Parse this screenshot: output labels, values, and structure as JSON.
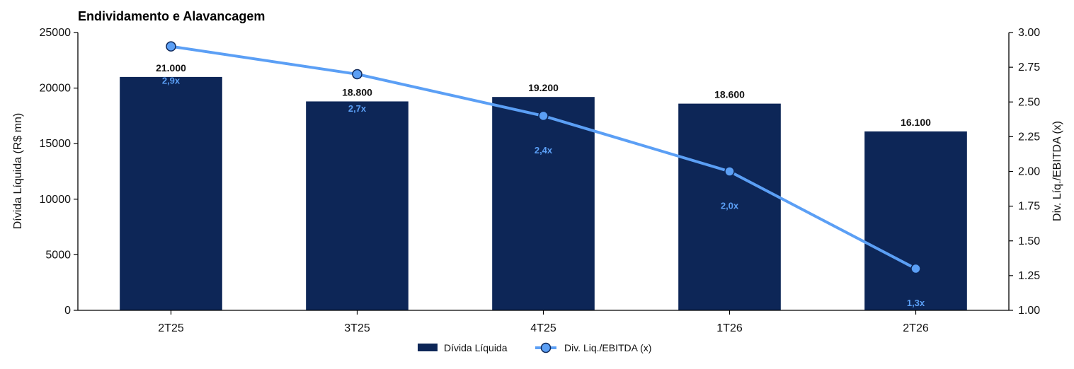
{
  "colors": {
    "bar": "#0d2657",
    "line": "#5b9ff5",
    "marker_edge": "#0d2657",
    "axis": "#000000"
  },
  "chart_data": {
    "type": "bar",
    "title": "Endividamento e Alavancagem",
    "categories": [
      "2T25",
      "3T25",
      "4T25",
      "1T26",
      "2T26"
    ],
    "series": [
      {
        "name": "Dívida Líquida",
        "type": "bar",
        "axis": "left",
        "values": [
          21000,
          18800,
          19200,
          18600,
          16100
        ],
        "labels": [
          "21.000",
          "18.800",
          "19.200",
          "18.600",
          "16.100"
        ]
      },
      {
        "name": "Div. Liq./EBITDA (x)",
        "type": "line",
        "axis": "right",
        "values": [
          2.9,
          2.7,
          2.4,
          2.0,
          1.3
        ],
        "labels": [
          "2,9x",
          "2,7x",
          "2,4x",
          "2,0x",
          "1,3x"
        ]
      }
    ],
    "ylabel_left": "Dívida Líquida (R$ mn)",
    "ylabel_right": "Div. Líq./EBITDA (x)",
    "ylim_left": [
      0,
      25000
    ],
    "ylim_right": [
      1.0,
      3.0
    ],
    "yticks_left": [
      "0",
      "5000",
      "10000",
      "15000",
      "20000",
      "25000"
    ],
    "yticks_right": [
      "1.00",
      "1.25",
      "1.50",
      "1.75",
      "2.00",
      "2.25",
      "2.50",
      "2.75",
      "3.00"
    ],
    "grid": false,
    "legend": "bottom-center"
  }
}
